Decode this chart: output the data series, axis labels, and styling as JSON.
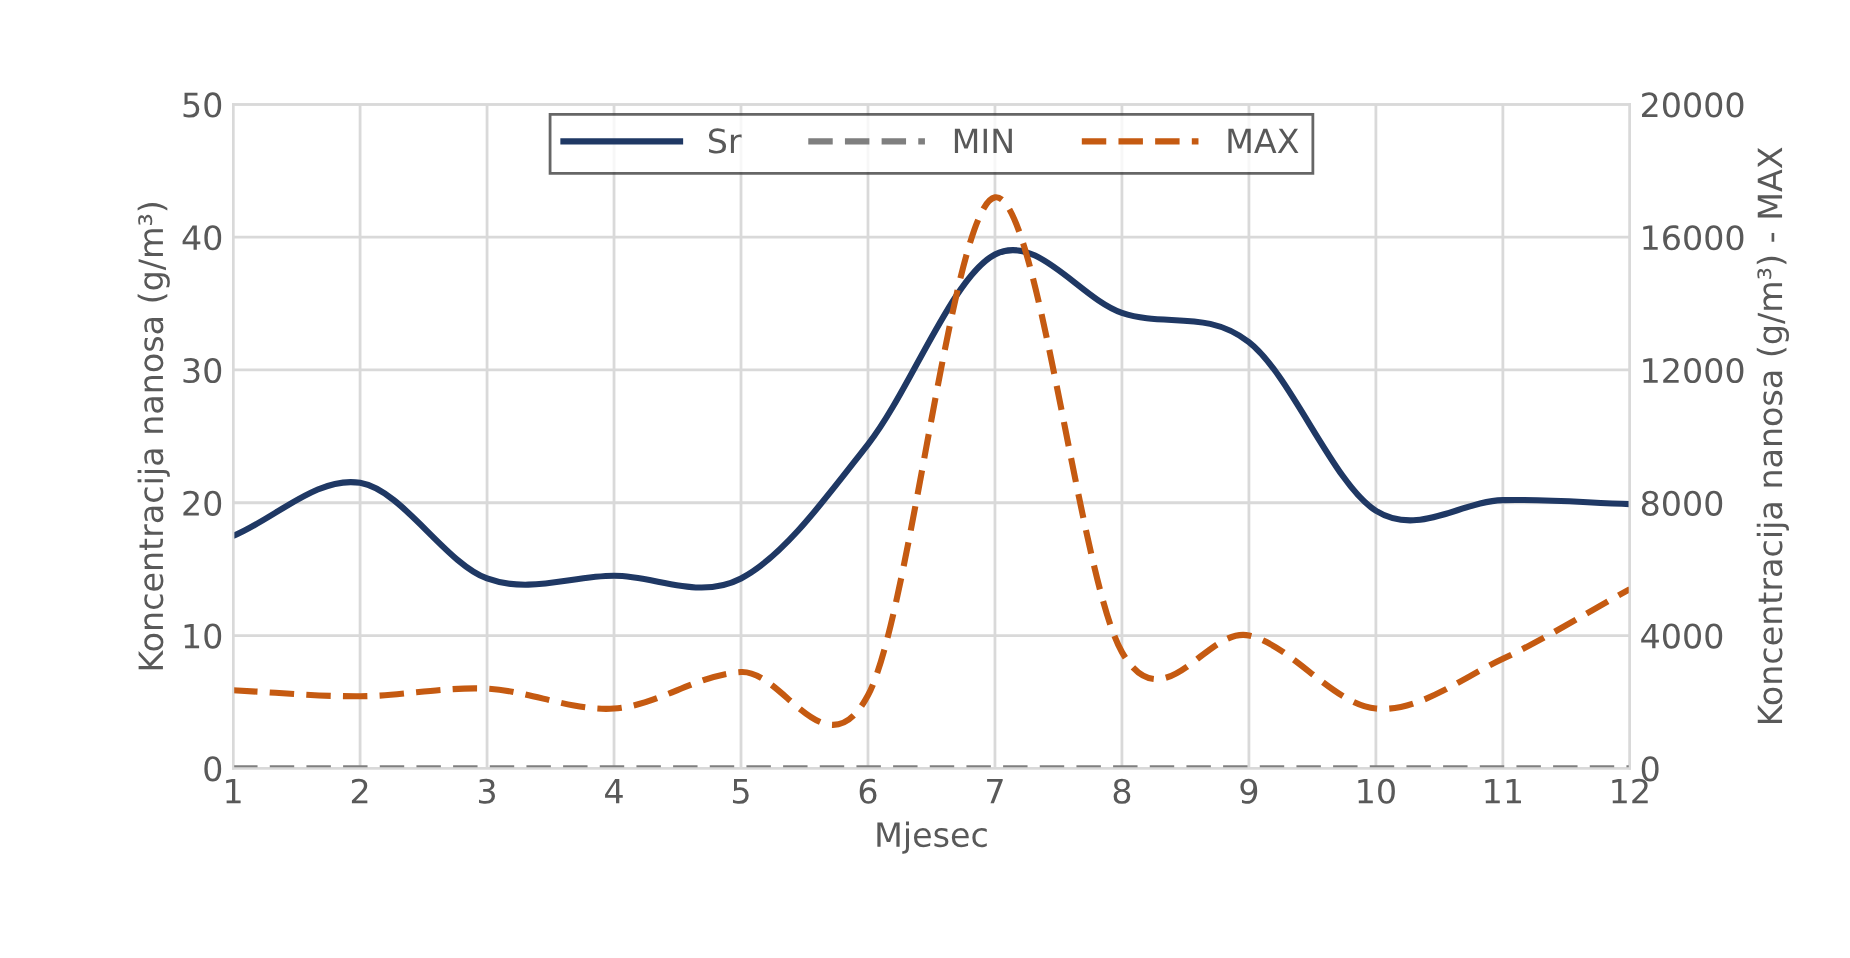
{
  "chart_data": {
    "type": "line",
    "xlabel": "Mjesec",
    "ylabel": "Koncentracija nanosa (g/m³)",
    "y2label": "Koncentracija nanosa (g/m³) - MAX",
    "x": [
      1,
      2,
      3,
      4,
      5,
      6,
      7,
      8,
      9,
      10,
      11,
      12
    ],
    "series": [
      {
        "name": "Sr",
        "color": "#1f3864",
        "values": [
          17.5,
          21.5,
          14.3,
          14.5,
          14.3,
          24.4,
          38.7,
          34.3,
          32.1,
          19.4,
          20.2,
          19.9
        ]
      },
      {
        "name": "MIN",
        "color": "#7f7f7f",
        "axis": "y2",
        "line_style": "dashed",
        "values": [
          0,
          0,
          0,
          0,
          0,
          0,
          0,
          0,
          0,
          0,
          0,
          0
        ]
      },
      {
        "name": "MAX",
        "color": "#c55a11",
        "axis": "y2",
        "line_style": "dashed",
        "values": [
          2350,
          2170,
          2400,
          1800,
          2900,
          2200,
          17200,
          3500,
          4000,
          1800,
          3300,
          5400
        ]
      }
    ],
    "xlim": [
      1,
      12
    ],
    "xticks": [
      1,
      2,
      3,
      4,
      5,
      6,
      7,
      8,
      9,
      10,
      11,
      12
    ],
    "ylim": [
      0,
      50
    ],
    "yticks": [
      0,
      10,
      20,
      30,
      40,
      50
    ],
    "y2lim": [
      0,
      20000
    ],
    "y2ticks": [
      0,
      4000,
      8000,
      12000,
      16000,
      20000
    ],
    "grid": true,
    "legend": "top",
    "marker": "none",
    "line_style": "solid"
  }
}
